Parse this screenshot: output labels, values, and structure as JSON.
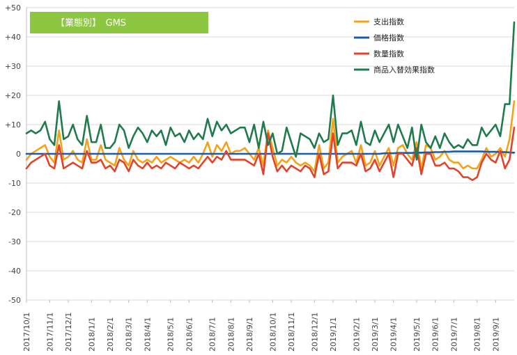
{
  "chart_data": {
    "type": "line",
    "title": "【業態別】　GMS",
    "title_box_color": "#8dc641",
    "ylim": [
      -50,
      50
    ],
    "yticks": [
      {
        "value": 50,
        "label": "+50"
      },
      {
        "value": 40,
        "label": "+40"
      },
      {
        "value": 30,
        "label": "+30"
      },
      {
        "value": 20,
        "label": "+20"
      },
      {
        "value": 10,
        "label": "+10"
      },
      {
        "value": 0,
        "label": "0"
      },
      {
        "value": -10,
        "label": "-10"
      },
      {
        "value": -20,
        "label": "-20"
      },
      {
        "value": -30,
        "label": "-30"
      },
      {
        "value": -40,
        "label": "-40"
      },
      {
        "value": -50,
        "label": "-50"
      }
    ],
    "xticks": [
      {
        "index": 0,
        "label": "2017/10/1"
      },
      {
        "index": 5,
        "label": "2017/11/1"
      },
      {
        "index": 9,
        "label": "2017/12/1"
      },
      {
        "index": 14,
        "label": "2018/1/1"
      },
      {
        "index": 18,
        "label": "2018/2/1"
      },
      {
        "index": 22,
        "label": "2018/3/1"
      },
      {
        "index": 26,
        "label": "2018/4/1"
      },
      {
        "index": 31,
        "label": "2018/5/1"
      },
      {
        "index": 35,
        "label": "2018/6/1"
      },
      {
        "index": 40,
        "label": "2018/7/1"
      },
      {
        "index": 44,
        "label": "2018/8/1"
      },
      {
        "index": 48,
        "label": "2018/9/1"
      },
      {
        "index": 53,
        "label": "2018/10/1"
      },
      {
        "index": 57,
        "label": "2018/11/1"
      },
      {
        "index": 62,
        "label": "2018/12/1"
      },
      {
        "index": 66,
        "label": "2019/1/1"
      },
      {
        "index": 71,
        "label": "2019/2/1"
      },
      {
        "index": 75,
        "label": "2019/3/1"
      },
      {
        "index": 79,
        "label": "2019/4/1"
      },
      {
        "index": 84,
        "label": "2019/5/1"
      },
      {
        "index": 88,
        "label": "2019/6/1"
      },
      {
        "index": 92,
        "label": "2019/7/1"
      },
      {
        "index": 97,
        "label": "2019/8/1"
      },
      {
        "index": 101,
        "label": "2019/9/1"
      }
    ],
    "n_points": 106,
    "legend_position": "top-right",
    "grid": "horizontal",
    "series": [
      {
        "name": "支出指数",
        "color": "#f5a21b",
        "values": [
          -2,
          0,
          1,
          2,
          3,
          -1,
          -3,
          8,
          -2,
          -1,
          1,
          -2,
          -3,
          5,
          -2,
          -2,
          3,
          -2,
          -3,
          -4,
          2,
          -2,
          -4,
          1,
          -2,
          -3,
          -2,
          -3,
          -1,
          -3,
          -2,
          -1,
          -2,
          -3,
          -2,
          -3,
          -1,
          -3,
          0,
          4,
          -1,
          3,
          1,
          4,
          0,
          1,
          1,
          2,
          0,
          -2,
          2,
          -4,
          8,
          2,
          -4,
          -2,
          -3,
          -1,
          -3,
          -4,
          -3,
          -4,
          -6,
          3,
          -5,
          -3,
          12,
          -3,
          -1,
          0,
          1,
          -3,
          3,
          -4,
          -3,
          1,
          -4,
          -1,
          2,
          -4,
          2,
          3,
          0,
          -2,
          4,
          -5,
          3,
          2,
          -2,
          -1,
          1,
          -2,
          -3,
          -3,
          -5,
          -4,
          -5,
          -5,
          -2,
          2,
          -1,
          0,
          2,
          -1,
          5,
          18
        ]
      },
      {
        "name": "価格指数",
        "color": "#1f5aa6",
        "values": [
          0,
          0,
          0,
          0,
          0,
          0,
          0,
          0,
          0,
          0,
          0,
          0,
          0,
          0,
          0,
          0,
          0,
          0,
          0,
          0,
          0,
          0,
          0,
          0,
          0,
          0,
          0,
          0,
          0,
          0,
          0,
          0,
          0,
          0,
          0,
          0,
          0,
          0,
          0,
          0,
          0,
          0,
          0,
          0,
          0,
          0,
          0,
          0,
          0,
          0,
          0,
          0,
          0,
          0,
          0,
          0,
          0,
          0,
          0,
          0,
          0,
          0,
          0,
          0,
          0,
          0,
          0,
          0,
          0,
          0,
          0,
          0,
          0,
          0,
          0,
          0,
          0,
          0.2,
          0.2,
          0.2,
          0.3,
          0.3,
          0.3,
          0.3,
          0.4,
          0.4,
          0.5,
          0.5,
          0.6,
          0.6,
          0.7,
          0.7,
          0.8,
          0.8,
          0.8,
          0.8,
          0.8,
          0.8,
          0.8,
          0.7,
          0.7,
          0.7,
          0.6,
          0.6,
          0.5,
          0.4
        ]
      },
      {
        "name": "数量指数",
        "color": "#e0452b",
        "values": [
          -5,
          -3,
          -2,
          -1,
          0,
          -4,
          -5,
          3,
          -5,
          -4,
          -3,
          -4,
          -5,
          1,
          -3,
          -3,
          -2,
          -5,
          -4,
          -6,
          -2,
          -3,
          -6,
          -2,
          -4,
          -5,
          -3,
          -5,
          -4,
          -5,
          -3,
          -4,
          -5,
          -3,
          -4,
          -5,
          -4,
          -5,
          -3,
          -1,
          -3,
          -1,
          -2,
          1,
          -2,
          -2,
          -2,
          -2,
          -3,
          -4,
          0,
          -7,
          7,
          -1,
          -6,
          -4,
          -6,
          -4,
          -5,
          -6,
          -4,
          -5,
          -8,
          0,
          -7,
          -6,
          7,
          -5,
          -3,
          -3,
          -3,
          -4,
          0,
          -6,
          -5,
          -2,
          -6,
          -3,
          0,
          -8,
          0,
          0,
          -2,
          -4,
          2,
          -7,
          0,
          0,
          -4,
          -4,
          -3,
          -5,
          -5,
          -6,
          -8,
          -8,
          -9,
          -8,
          -3,
          0,
          -2,
          -3,
          1,
          -5,
          -2,
          9
        ]
      },
      {
        "name": "商品入替効果指数",
        "color": "#1f7a4c",
        "values": [
          7,
          8,
          7,
          8,
          11,
          5,
          3,
          18,
          5,
          6,
          10,
          5,
          3,
          13,
          4,
          4,
          10,
          2,
          2,
          4,
          10,
          8,
          2,
          6,
          9,
          7,
          4,
          8,
          6,
          8,
          3,
          9,
          6,
          7,
          4,
          8,
          5,
          7,
          5,
          12,
          6,
          11,
          8,
          10,
          7,
          8,
          9,
          9,
          4,
          10,
          2,
          11,
          3,
          7,
          0,
          1,
          9,
          4,
          -1,
          7,
          6,
          5,
          2,
          7,
          4,
          5,
          20,
          3,
          7,
          7,
          8,
          3,
          11,
          4,
          3,
          8,
          4,
          7,
          10,
          4,
          10,
          6,
          2,
          9,
          -2,
          10,
          4,
          2,
          6,
          2,
          7,
          4,
          2,
          3,
          2,
          5,
          3,
          3,
          9,
          6,
          8,
          10,
          6,
          17,
          17,
          45
        ]
      }
    ]
  }
}
